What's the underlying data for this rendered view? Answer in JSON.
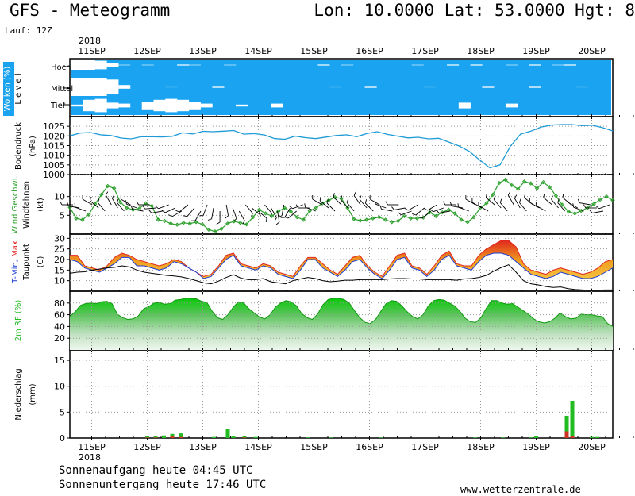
{
  "header": {
    "title": "GFS - Meteogramm",
    "coords": "Lon: 10.0000  Lat: 53.0000  Hgt: 8",
    "run": "Lauf: 12Z"
  },
  "footer": {
    "sunrise": "Sonnenaufgang heute 04:45 UTC",
    "sunset": "Sonnenuntergang heute 17:46 UTC",
    "site": "www.wetterzentrale.de"
  },
  "colors": {
    "cloud": "#1aa3f0",
    "pressure": "#1e9bd6",
    "wind": "#2ca02c",
    "hum": "#22bb22",
    "precip_conv": "#22bb22",
    "precip_large": "#cc3322",
    "tmax": "#e0281e",
    "tmin": "#1a3bd6",
    "band": "#f0a020"
  },
  "chart_data": {
    "type": "meteogram",
    "x_year": "2018",
    "x_labels": [
      "11SEP",
      "12SEP",
      "13SEP",
      "14SEP",
      "15SEP",
      "16SEP",
      "17SEP",
      "18SEP",
      "19SEP",
      "20SEP"
    ],
    "panels": [
      {
        "name": "Wolken (%)",
        "label": "Wolken (%)",
        "label_b": "L e v e l",
        "type": "area",
        "levels": [
          "Hoch",
          "Mittel",
          "Tief"
        ],
        "coverage": {
          "hoch": [
            0,
            0,
            10,
            50,
            95,
            100,
            95,
            100,
            100,
            90,
            95,
            100,
            100,
            95,
            100,
            100,
            100,
            100,
            100,
            100,
            100,
            90,
            100,
            95,
            100,
            100,
            100,
            100,
            100,
            95,
            100,
            100,
            90,
            100,
            90,
            100,
            100,
            95,
            100,
            90,
            100,
            95,
            90,
            100,
            100,
            100
          ],
          "mittel": [
            0,
            0,
            0,
            20,
            80,
            100,
            100,
            100,
            95,
            100,
            100,
            100,
            90,
            100,
            100,
            100,
            100,
            100,
            100,
            100,
            100,
            100,
            95,
            100,
            100,
            90,
            100,
            100,
            100,
            100,
            95,
            100,
            100,
            100,
            100,
            90,
            100,
            100,
            100,
            90,
            100,
            100,
            100,
            95,
            100,
            100
          ],
          "tief": [
            90,
            40,
            30,
            70,
            80,
            100,
            60,
            40,
            30,
            40,
            60,
            80,
            100,
            100,
            90,
            100,
            100,
            80,
            100,
            100,
            100,
            100,
            100,
            100,
            100,
            100,
            100,
            100,
            100,
            100,
            100,
            100,
            100,
            70,
            100,
            100,
            100,
            80,
            100,
            100,
            100,
            100,
            100,
            100,
            100,
            100
          ]
        }
      },
      {
        "name": "Bodendruck (hPa)",
        "label": "Bodendruck",
        "label_b": "(hPa)",
        "type": "line",
        "ylim": [
          1000,
          1030
        ],
        "y_ticks": [
          1000,
          1005,
          1010,
          1015,
          1020,
          1025
        ],
        "values": [
          1020.0,
          1021.5,
          1021.8,
          1020.6,
          1020.2,
          1018.9,
          1018.5,
          1019.6,
          1019.6,
          1019.5,
          1019.8,
          1021.6,
          1021.0,
          1022.4,
          1022.2,
          1022.5,
          1022.8,
          1020.9,
          1021.2,
          1020.5,
          1018.6,
          1018.3,
          1019.9,
          1019.1,
          1018.6,
          1019.4,
          1020.2,
          1020.6,
          1019.6,
          1021.3,
          1022.2,
          1020.8,
          1019.9,
          1019.0,
          1019.3,
          1018.5,
          1018.8,
          1016.8,
          1014.8,
          1012.0,
          1007.6,
          1003.5,
          1005.0,
          1014.6,
          1020.9,
          1022.5,
          1024.6,
          1025.6,
          1025.9,
          1025.9,
          1025.3,
          1025.5,
          1024.3,
          1022.6
        ]
      },
      {
        "name": "Wind Geschwi. (kt) / Windfahnen",
        "label": "Wind Geschwi.",
        "label_b": "Windfahnen",
        "label_c": "(kt)",
        "type": "line",
        "ylim": [
          0,
          15
        ],
        "y_ticks": [
          5,
          10
        ],
        "values": [
          7.1,
          4.2,
          3.8,
          5.2,
          8.0,
          10.5,
          12.8,
          12.2,
          8.5,
          7.0,
          6.5,
          6.8,
          8.2,
          7.5,
          3.8,
          3.5,
          2.8,
          2.5,
          3.0,
          2.8,
          3.2,
          2.6,
          1.2,
          0.7,
          1.4,
          2.8,
          3.4,
          3.0,
          2.6,
          4.5,
          6.5,
          5.5,
          4.8,
          6.0,
          7.0,
          6.0,
          4.5,
          3.8,
          6.2,
          7.0,
          8.2,
          9.0,
          9.8,
          9.5,
          7.0,
          4.0,
          3.6,
          3.8,
          4.2,
          4.5,
          3.8,
          3.2,
          3.5,
          4.8,
          4.2,
          4.2,
          4.4,
          5.8,
          4.8,
          5.8,
          6.5,
          5.5,
          3.8,
          3.2,
          4.5,
          7.0,
          8.2,
          10.5,
          13.6,
          14.5,
          13.0,
          12.0,
          14.0,
          13.5,
          12.2,
          13.8,
          12.5,
          10.2,
          7.8,
          6.0,
          5.5,
          6.2,
          7.0,
          8.0,
          9.2,
          10.0,
          9.0
        ]
      },
      {
        "name": "T-Min, Max (C) / Taupunkt",
        "label": "T-Min, Max",
        "label_b": "Taupunkt",
        "label_c": "(C)",
        "type": "area",
        "ylim": [
          5,
          32
        ],
        "y_ticks": [
          10,
          15,
          20,
          25,
          30
        ],
        "tmax": [
          22,
          22,
          17,
          16,
          15,
          17,
          21,
          23,
          22,
          20,
          19,
          18,
          17,
          18,
          20,
          19,
          16,
          14,
          12,
          13,
          17,
          22,
          23,
          18,
          17,
          16,
          18,
          17,
          14,
          13,
          12,
          17,
          21,
          21,
          18,
          15,
          13,
          17,
          21,
          22,
          17,
          14,
          12,
          17,
          22,
          23,
          17,
          16,
          13,
          17,
          22,
          24,
          18,
          17,
          17,
          22,
          25,
          27,
          29,
          29,
          26,
          18,
          15,
          14,
          13,
          15,
          16,
          15,
          14,
          13,
          14,
          16,
          19,
          20
        ],
        "tmin": [
          20,
          19,
          16,
          15,
          14,
          16,
          18,
          21,
          21,
          17,
          17,
          16,
          15,
          16,
          19,
          18,
          16,
          14,
          11,
          12,
          16,
          20,
          22,
          17,
          16,
          15,
          17,
          16,
          13,
          12,
          11,
          15,
          20,
          20,
          16,
          14,
          12,
          15,
          19,
          20,
          16,
          13,
          11,
          15,
          20,
          21,
          16,
          15,
          12,
          15,
          20,
          22,
          17,
          16,
          15,
          19,
          22,
          23,
          23,
          22,
          19,
          16,
          13,
          12,
          11,
          12,
          14,
          13,
          12,
          11,
          11,
          12,
          14,
          16
        ],
        "dew": [
          13.5,
          14,
          14.2,
          15,
          15.5,
          16,
          16.3,
          17,
          16.5,
          15,
          14,
          13.5,
          13,
          12.5,
          12.2,
          11.8,
          11,
          10,
          9,
          8.5,
          9.8,
          11.5,
          12.8,
          11.2,
          10.5,
          10.5,
          11,
          9.5,
          9,
          8.5,
          10,
          10.8,
          11.5,
          11,
          10,
          9.5,
          9.8,
          10.2,
          10.2,
          10.5,
          10.5,
          10.5,
          10.5,
          10.8,
          11,
          11,
          10.8,
          10.8,
          10.5,
          10.5,
          10.5,
          10.5,
          10.2,
          10.8,
          11,
          11.5,
          12.5,
          14.5,
          16.2,
          17.5,
          14,
          10,
          8.5,
          8,
          7.2,
          6.8,
          7,
          6.2,
          5.8,
          5.6,
          5.5,
          5.5,
          5.6,
          5.6
        ]
      },
      {
        "name": "2m RF (%)",
        "label": "2m RF (%)",
        "type": "area",
        "ylim": [
          0,
          100
        ],
        "y_ticks": [
          20,
          40,
          60,
          80
        ],
        "values": [
          57,
          65,
          76,
          79,
          80,
          79,
          82,
          83,
          79,
          61,
          55,
          52,
          53,
          58,
          70,
          74,
          80,
          81,
          78,
          79,
          85,
          86,
          88,
          88,
          87,
          83,
          81,
          66,
          55,
          52,
          60,
          73,
          82,
          80,
          70,
          63,
          56,
          53,
          60,
          73,
          80,
          84,
          82,
          75,
          62,
          55,
          52,
          61,
          77,
          86,
          88,
          88,
          86,
          80,
          67,
          55,
          47,
          45,
          52,
          66,
          79,
          84,
          83,
          75,
          65,
          57,
          53,
          60,
          75,
          84,
          86,
          85,
          80,
          75,
          66,
          54,
          48,
          47,
          55,
          71,
          84,
          84,
          80,
          78,
          79,
          73,
          67,
          61,
          53,
          48,
          46,
          48,
          54,
          63,
          57,
          53,
          54,
          61,
          60,
          60,
          58,
          57,
          45,
          40
        ]
      },
      {
        "name": "Niederschlag (mm)",
        "label": "Niederschlag",
        "label_b": "(mm)",
        "type": "bar",
        "ylim": [
          0,
          17
        ],
        "y_ticks": [
          0,
          5,
          10,
          15
        ],
        "bars": [
          {
            "day": 1.0,
            "value": 0.3,
            "large_scale": 0.1
          },
          {
            "day": 1.15,
            "value": 0.3,
            "large_scale": 0.1
          },
          {
            "day": 1.3,
            "value": 0.5,
            "large_scale": 0.0
          },
          {
            "day": 1.45,
            "value": 0.8,
            "large_scale": 0.3
          },
          {
            "day": 1.6,
            "value": 0.9,
            "large_scale": 0.2
          },
          {
            "day": 2.2,
            "value": 0.2,
            "large_scale": 0.0
          },
          {
            "day": 2.45,
            "value": 1.8,
            "large_scale": 0.0
          },
          {
            "day": 2.55,
            "value": 0.3,
            "large_scale": 0.0
          },
          {
            "day": 2.75,
            "value": 0.4,
            "large_scale": 0.1
          },
          {
            "day": 2.95,
            "value": 0.2,
            "large_scale": 0.0
          },
          {
            "day": 3.9,
            "value": 0.1,
            "large_scale": 0.0
          },
          {
            "day": 4.3,
            "value": 0.1,
            "large_scale": 0.0
          },
          {
            "day": 5.2,
            "value": 0.1,
            "large_scale": 0.0
          },
          {
            "day": 6.9,
            "value": 0.1,
            "large_scale": 0.0
          },
          {
            "day": 7.4,
            "value": 0.1,
            "large_scale": 0.0
          },
          {
            "day": 7.9,
            "value": 0.1,
            "large_scale": 0.0
          },
          {
            "day": 8.0,
            "value": 0.3,
            "large_scale": 0.0
          },
          {
            "day": 8.55,
            "value": 4.3,
            "large_scale": 1.3
          },
          {
            "day": 8.65,
            "value": 7.2,
            "large_scale": 0.4
          },
          {
            "day": 9.0,
            "value": 0.2,
            "large_scale": 0.0
          },
          {
            "day": 9.1,
            "value": 0.2,
            "large_scale": 0.0
          }
        ]
      }
    ],
    "wind_barb_directions": [
      270,
      280,
      290,
      300,
      310,
      320,
      330,
      330,
      320,
      300,
      290,
      280,
      270,
      265,
      260,
      250,
      245,
      240,
      230,
      220,
      210,
      200,
      190,
      180,
      170,
      160,
      150,
      140,
      130,
      130,
      140,
      150,
      170,
      190,
      210,
      230,
      250,
      270,
      290,
      300,
      310,
      315,
      315,
      320,
      320,
      325,
      320,
      315,
      300,
      290,
      280,
      270,
      260,
      250,
      240,
      230,
      230,
      240,
      250,
      260,
      270,
      280,
      290,
      300,
      300,
      300,
      310,
      320,
      320,
      330,
      330,
      320,
      310,
      300,
      300,
      310,
      320,
      320,
      310,
      300,
      290,
      280,
      270,
      260,
      250
    ]
  }
}
